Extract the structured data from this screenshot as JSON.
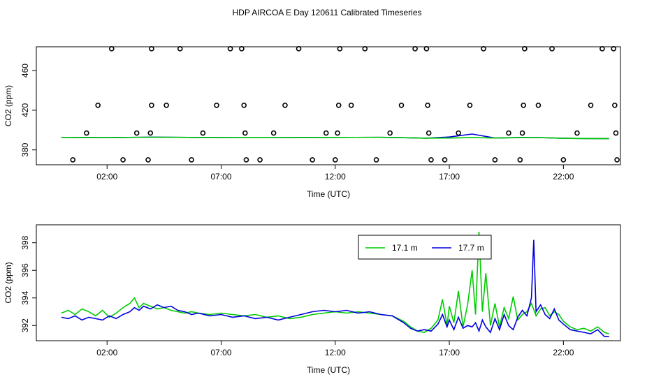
{
  "title": "HDP AIRCOA E  Day 120611  Calibrated Timeseries",
  "colors": {
    "series_a": "#00cc00",
    "series_b": "#0000dd",
    "axis": "#000000",
    "points": "#000000"
  },
  "chart_data": [
    {
      "type": "scatter",
      "xlabel": "Time (UTC)",
      "ylabel": "CO2 (ppm)",
      "xlim": [
        -1.1,
        24.5
      ],
      "ylim": [
        365,
        484
      ],
      "x_ticks": [
        2,
        7,
        12,
        17,
        22
      ],
      "x_tick_labels": [
        "02:00",
        "07:00",
        "12:00",
        "17:00",
        "22:00"
      ],
      "y_ticks": [
        380,
        420,
        460
      ],
      "y_tick_labels": [
        "380",
        "420",
        "460"
      ],
      "grid": false,
      "points": [
        [
          0.5,
          370
        ],
        [
          1.1,
          397
        ],
        [
          1.6,
          425
        ],
        [
          2.2,
          482
        ],
        [
          2.7,
          370
        ],
        [
          3.3,
          397
        ],
        [
          3.8,
          370
        ],
        [
          3.9,
          397
        ],
        [
          3.95,
          425
        ],
        [
          3.95,
          482
        ],
        [
          4.6,
          425
        ],
        [
          5.2,
          482
        ],
        [
          5.7,
          370
        ],
        [
          6.2,
          397
        ],
        [
          6.8,
          425
        ],
        [
          7.4,
          482
        ],
        [
          7.9,
          482
        ],
        [
          8.0,
          425
        ],
        [
          8.05,
          397
        ],
        [
          8.1,
          370
        ],
        [
          8.7,
          370
        ],
        [
          9.3,
          397
        ],
        [
          9.8,
          425
        ],
        [
          10.4,
          482
        ],
        [
          11.0,
          370
        ],
        [
          11.6,
          397
        ],
        [
          12.0,
          370
        ],
        [
          12.1,
          397
        ],
        [
          12.15,
          425
        ],
        [
          12.2,
          482
        ],
        [
          12.7,
          425
        ],
        [
          13.3,
          482
        ],
        [
          13.8,
          370
        ],
        [
          14.4,
          397
        ],
        [
          14.9,
          425
        ],
        [
          15.5,
          482
        ],
        [
          16.0,
          482
        ],
        [
          16.05,
          425
        ],
        [
          16.1,
          397
        ],
        [
          16.2,
          370
        ],
        [
          16.8,
          370
        ],
        [
          17.4,
          397
        ],
        [
          17.9,
          425
        ],
        [
          18.5,
          482
        ],
        [
          19.0,
          370
        ],
        [
          19.6,
          397
        ],
        [
          20.1,
          370
        ],
        [
          20.2,
          397
        ],
        [
          20.25,
          425
        ],
        [
          20.3,
          482
        ],
        [
          20.9,
          425
        ],
        [
          21.5,
          482
        ],
        [
          22.0,
          370
        ],
        [
          22.6,
          397
        ],
        [
          23.2,
          425
        ],
        [
          23.7,
          482
        ],
        [
          24.2,
          482
        ],
        [
          24.25,
          425
        ],
        [
          24.3,
          397
        ],
        [
          24.35,
          370
        ]
      ],
      "series": [
        {
          "values": [
            [
              0,
              392.6
            ],
            [
              2,
              392.4
            ],
            [
              4,
              392.8
            ],
            [
              6,
              392.5
            ],
            [
              8,
              392.3
            ],
            [
              10,
              392.4
            ],
            [
              12,
              392.6
            ],
            [
              14,
              392.7
            ],
            [
              15,
              392.3
            ],
            [
              16,
              391.8
            ],
            [
              17,
              392
            ],
            [
              18,
              392.4
            ],
            [
              19,
              392
            ],
            [
              20,
              392.3
            ],
            [
              21,
              392.4
            ],
            [
              22,
              391.7
            ],
            [
              23,
              391.5
            ],
            [
              24,
              391.3
            ]
          ]
        },
        {
          "values": [
            [
              0,
              392.6
            ],
            [
              2,
              392.3
            ],
            [
              4,
              392.9
            ],
            [
              6,
              392.5
            ],
            [
              8,
              392.3
            ],
            [
              10,
              392.4
            ],
            [
              12,
              392.6
            ],
            [
              14,
              392.7
            ],
            [
              15,
              392.3
            ],
            [
              16,
              391.8
            ],
            [
              17,
              393
            ],
            [
              18,
              396
            ],
            [
              19,
              392
            ],
            [
              20,
              392.5
            ],
            [
              21,
              392.4
            ],
            [
              22,
              391.7
            ],
            [
              23,
              391.5
            ],
            [
              24,
              391.3
            ]
          ]
        }
      ]
    },
    {
      "type": "line",
      "xlabel": "Time (UTC)",
      "ylabel": "CO2 (ppm)",
      "xlim": [
        -1.1,
        24.5
      ],
      "ylim": [
        390.9,
        399.3
      ],
      "x_ticks": [
        2,
        7,
        12,
        17,
        22
      ],
      "x_tick_labels": [
        "02:00",
        "07:00",
        "12:00",
        "17:00",
        "22:00"
      ],
      "y_ticks": [
        392,
        394,
        396,
        398
      ],
      "y_tick_labels": [
        "392",
        "394",
        "396",
        "398"
      ],
      "grid": false,
      "legend": "top-center",
      "series": [
        {
          "name": "17.1 m",
          "values": [
            [
              0,
              392.9
            ],
            [
              0.3,
              393.1
            ],
            [
              0.6,
              392.8
            ],
            [
              0.9,
              393.2
            ],
            [
              1.2,
              393.0
            ],
            [
              1.5,
              392.7
            ],
            [
              1.8,
              393.1
            ],
            [
              2.1,
              392.6
            ],
            [
              2.4,
              392.9
            ],
            [
              2.7,
              393.3
            ],
            [
              3.0,
              393.6
            ],
            [
              3.2,
              394.0
            ],
            [
              3.4,
              393.3
            ],
            [
              3.6,
              393.6
            ],
            [
              3.9,
              393.4
            ],
            [
              4.2,
              393.2
            ],
            [
              4.5,
              393.3
            ],
            [
              4.8,
              393.1
            ],
            [
              5.1,
              393.0
            ],
            [
              5.4,
              392.9
            ],
            [
              5.7,
              393.0
            ],
            [
              6.0,
              392.9
            ],
            [
              6.5,
              392.8
            ],
            [
              7.0,
              392.9
            ],
            [
              7.5,
              392.8
            ],
            [
              8.0,
              392.7
            ],
            [
              8.5,
              392.8
            ],
            [
              9.0,
              392.6
            ],
            [
              9.5,
              392.7
            ],
            [
              10.0,
              392.5
            ],
            [
              10.5,
              392.6
            ],
            [
              11.0,
              392.8
            ],
            [
              11.5,
              392.9
            ],
            [
              12.0,
              393.0
            ],
            [
              12.5,
              392.9
            ],
            [
              13.0,
              393.0
            ],
            [
              13.5,
              392.9
            ],
            [
              14.0,
              392.8
            ],
            [
              14.5,
              392.7
            ],
            [
              15.0,
              392.3
            ],
            [
              15.3,
              391.9
            ],
            [
              15.6,
              391.6
            ],
            [
              15.9,
              391.5
            ],
            [
              16.2,
              391.8
            ],
            [
              16.5,
              392.4
            ],
            [
              16.7,
              393.9
            ],
            [
              16.9,
              392.0
            ],
            [
              17.0,
              393.4
            ],
            [
              17.2,
              392.2
            ],
            [
              17.4,
              394.5
            ],
            [
              17.6,
              391.9
            ],
            [
              17.8,
              393.5
            ],
            [
              18.0,
              396.0
            ],
            [
              18.15,
              392.8
            ],
            [
              18.3,
              398.8
            ],
            [
              18.45,
              393.0
            ],
            [
              18.6,
              395.8
            ],
            [
              18.8,
              392.0
            ],
            [
              19.0,
              393.6
            ],
            [
              19.2,
              391.9
            ],
            [
              19.4,
              393.3
            ],
            [
              19.6,
              392.5
            ],
            [
              19.8,
              394.1
            ],
            [
              20.0,
              392.4
            ],
            [
              20.2,
              392.8
            ],
            [
              20.4,
              393.0
            ],
            [
              20.6,
              393.6
            ],
            [
              20.8,
              392.7
            ],
            [
              21.0,
              393.2
            ],
            [
              21.2,
              393.3
            ],
            [
              21.4,
              392.7
            ],
            [
              21.6,
              393.0
            ],
            [
              21.8,
              392.8
            ],
            [
              22.0,
              392.3
            ],
            [
              22.3,
              391.9
            ],
            [
              22.6,
              391.7
            ],
            [
              22.9,
              391.8
            ],
            [
              23.2,
              391.6
            ],
            [
              23.5,
              391.9
            ],
            [
              23.8,
              391.5
            ],
            [
              24.0,
              391.4
            ]
          ]
        },
        {
          "name": "17.7 m",
          "values": [
            [
              0,
              392.6
            ],
            [
              0.3,
              392.5
            ],
            [
              0.6,
              392.7
            ],
            [
              0.9,
              392.4
            ],
            [
              1.2,
              392.6
            ],
            [
              1.5,
              392.5
            ],
            [
              1.8,
              392.4
            ],
            [
              2.1,
              392.7
            ],
            [
              2.4,
              392.5
            ],
            [
              2.7,
              392.8
            ],
            [
              3.0,
              393.0
            ],
            [
              3.2,
              393.3
            ],
            [
              3.4,
              393.1
            ],
            [
              3.6,
              393.4
            ],
            [
              3.9,
              393.2
            ],
            [
              4.2,
              393.5
            ],
            [
              4.5,
              393.3
            ],
            [
              4.8,
              393.4
            ],
            [
              5.1,
              393.1
            ],
            [
              5.4,
              393.0
            ],
            [
              5.7,
              392.8
            ],
            [
              6.0,
              392.9
            ],
            [
              6.5,
              392.7
            ],
            [
              7.0,
              392.8
            ],
            [
              7.5,
              392.6
            ],
            [
              8.0,
              392.7
            ],
            [
              8.5,
              392.5
            ],
            [
              9.0,
              392.6
            ],
            [
              9.5,
              392.4
            ],
            [
              10.0,
              392.6
            ],
            [
              10.5,
              392.8
            ],
            [
              11.0,
              393.0
            ],
            [
              11.5,
              393.1
            ],
            [
              12.0,
              393.0
            ],
            [
              12.5,
              393.1
            ],
            [
              13.0,
              392.9
            ],
            [
              13.5,
              393.0
            ],
            [
              14.0,
              392.8
            ],
            [
              14.5,
              392.7
            ],
            [
              15.0,
              392.2
            ],
            [
              15.3,
              391.8
            ],
            [
              15.6,
              391.6
            ],
            [
              15.9,
              391.7
            ],
            [
              16.2,
              391.6
            ],
            [
              16.5,
              392.1
            ],
            [
              16.7,
              392.8
            ],
            [
              16.9,
              391.9
            ],
            [
              17.0,
              392.4
            ],
            [
              17.2,
              391.7
            ],
            [
              17.4,
              392.6
            ],
            [
              17.6,
              391.8
            ],
            [
              17.8,
              392.0
            ],
            [
              18.0,
              391.9
            ],
            [
              18.15,
              392.2
            ],
            [
              18.3,
              391.6
            ],
            [
              18.45,
              392.4
            ],
            [
              18.6,
              391.9
            ],
            [
              18.8,
              391.5
            ],
            [
              19.0,
              392.5
            ],
            [
              19.2,
              391.7
            ],
            [
              19.4,
              392.8
            ],
            [
              19.6,
              392.0
            ],
            [
              19.8,
              391.7
            ],
            [
              20.0,
              392.6
            ],
            [
              20.2,
              393.1
            ],
            [
              20.4,
              392.7
            ],
            [
              20.6,
              394.0
            ],
            [
              20.7,
              398.2
            ],
            [
              20.8,
              393.0
            ],
            [
              21.0,
              393.5
            ],
            [
              21.2,
              392.8
            ],
            [
              21.4,
              392.5
            ],
            [
              21.6,
              393.2
            ],
            [
              21.8,
              392.4
            ],
            [
              22.0,
              392.1
            ],
            [
              22.3,
              391.7
            ],
            [
              22.6,
              391.6
            ],
            [
              22.9,
              391.5
            ],
            [
              23.2,
              391.4
            ],
            [
              23.5,
              391.7
            ],
            [
              23.8,
              391.2
            ],
            [
              24.0,
              391.2
            ]
          ]
        }
      ]
    }
  ]
}
